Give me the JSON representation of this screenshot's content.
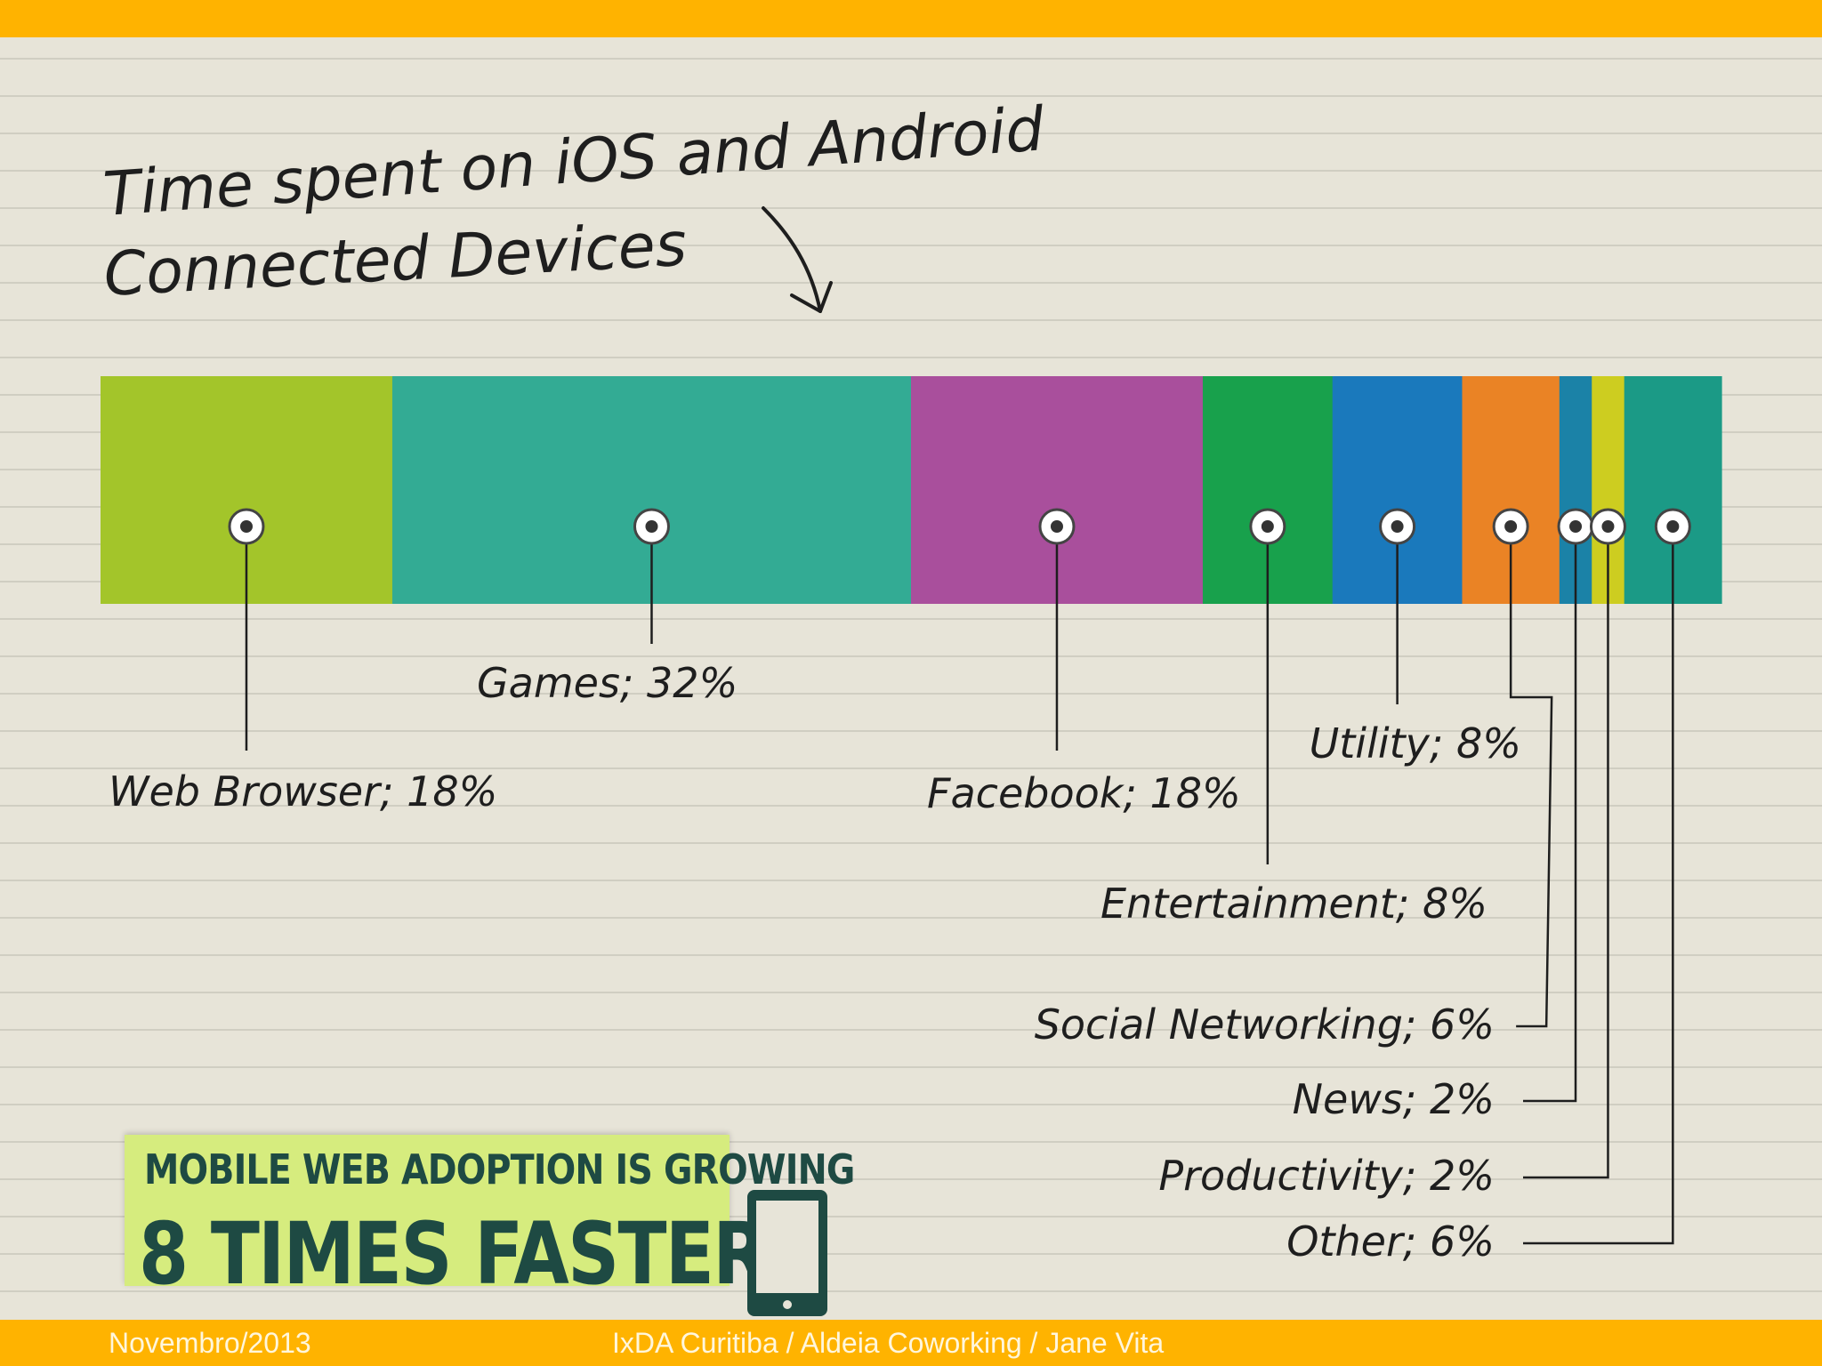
{
  "colors": {
    "frame": "#FFB300",
    "paper": "#e7e4d8",
    "rule_line": "#c9c6bb",
    "ink": "#1e1e1e",
    "banner_bg": "#d6ec7e",
    "banner_text": "#1e4a43"
  },
  "chart_data": {
    "type": "stacked-bar",
    "orientation": "horizontal",
    "title_lines": [
      "Time spent on iOS and Android",
      "Connected Devices"
    ],
    "unit": "%",
    "segments": [
      {
        "name": "Web Browser",
        "value": 18,
        "label": "Web Browser; 18%",
        "color": "#a3c52a"
      },
      {
        "name": "Games",
        "value": 32,
        "label": "Games; 32%",
        "color": "#33ab94"
      },
      {
        "name": "Facebook",
        "value": 18,
        "label": "Facebook; 18%",
        "color": "#a94f9c"
      },
      {
        "name": "Entertainment",
        "value": 8,
        "label": "Entertainment; 8%",
        "color": "#18a14c"
      },
      {
        "name": "Utility",
        "value": 8,
        "label": "Utility; 8%",
        "color": "#1a79bc"
      },
      {
        "name": "Social Networking",
        "value": 6,
        "label": "Social Networking; 6%",
        "color": "#ea8325"
      },
      {
        "name": "News",
        "value": 2,
        "label": "News; 2%",
        "color": "#1b82a7"
      },
      {
        "name": "Productivity",
        "value": 2,
        "label": "Productivity; 2%",
        "color": "#cdcd20"
      },
      {
        "name": "Other",
        "value": 6,
        "label": "Other; 6%",
        "color": "#1b9a86"
      }
    ]
  },
  "banner": {
    "line1": "MOBILE WEB ADOPTION IS GROWING",
    "line2": "8 TIMES FASTER",
    "icon": "mobile-phone-icon"
  },
  "footer": {
    "date": "Novembro/2013",
    "credits": "IxDA Curitiba / Aldeia Coworking / Jane Vita"
  }
}
